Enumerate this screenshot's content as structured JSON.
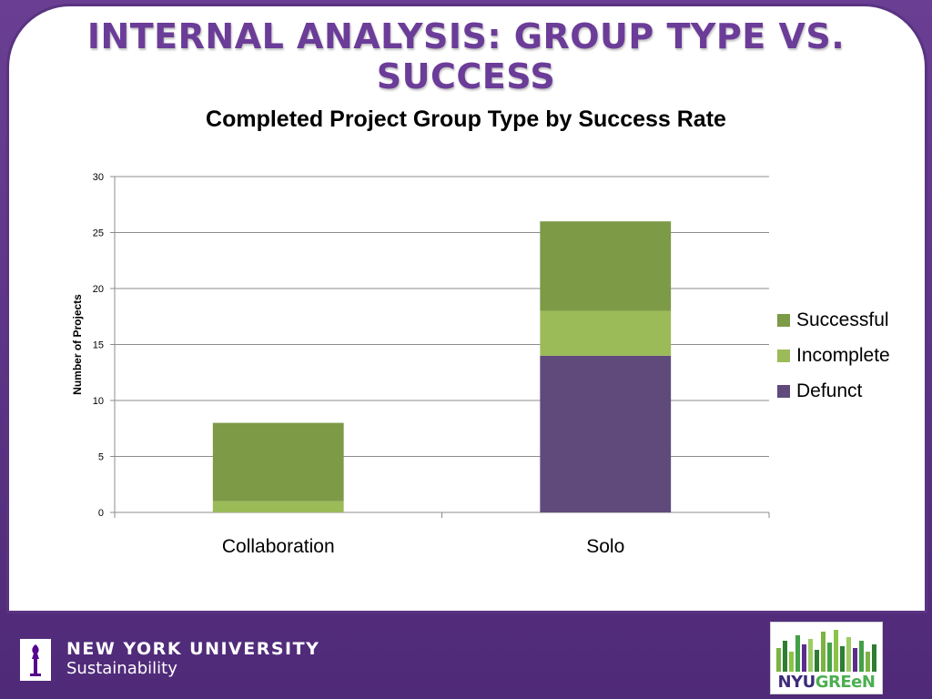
{
  "slide": {
    "title": "INTERNAL ANALYSIS: GROUP TYPE VS. SUCCESS"
  },
  "chart_data": {
    "type": "bar",
    "stacked": true,
    "title": "Completed Project Group Type by Success Rate",
    "xlabel": "",
    "ylabel": "Number of Projects",
    "categories": [
      "Collaboration",
      "Solo"
    ],
    "ylim": [
      0,
      30
    ],
    "yticks": [
      0,
      5,
      10,
      15,
      20,
      25,
      30
    ],
    "grid": true,
    "legend_position": "right",
    "series": [
      {
        "name": "Defunct",
        "values": [
          0,
          14
        ],
        "color": "#604a7b"
      },
      {
        "name": "Incomplete",
        "values": [
          1,
          4
        ],
        "color": "#9bbb59"
      },
      {
        "name": "Successful",
        "values": [
          7,
          8
        ],
        "color": "#7d9a47"
      }
    ],
    "legend_order": [
      "Successful",
      "Incomplete",
      "Defunct"
    ]
  },
  "footer": {
    "university": "NEW YORK UNIVERSITY",
    "department": "Sustainability",
    "logo_text_nyu": "NYU",
    "logo_text_green": "GREeN",
    "logo_icon": "torch-icon",
    "logo_bars_icon": "bar-skyline-icon"
  },
  "colors": {
    "frame": "#5b3584",
    "title": "#6b3c98"
  }
}
